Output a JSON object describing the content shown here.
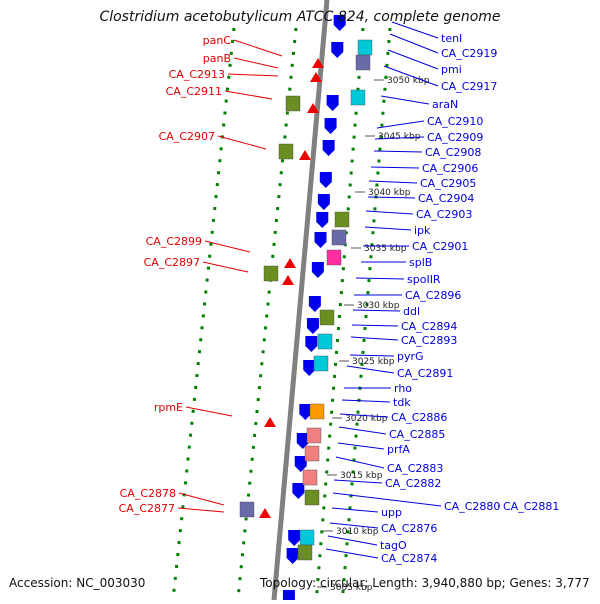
{
  "title": "Clostridium acetobutylicum ATCC 824, complete genome",
  "footer": {
    "accession": "Accession: NC_003030",
    "summary": "Topology: circular; Length: 3,940,880 bp; Genes: 3,777"
  },
  "colors": {
    "reverse_label": "#e00000",
    "forward_label": "#0000dd",
    "backbone": "#808080",
    "dots": "#008000",
    "gene_blue": "#0000ee",
    "gene_red": "#ee0000",
    "cog_olive": "#6b8e23",
    "cog_cyan": "#00c8d8",
    "cog_slate": "#6a6aa8",
    "cog_magenta": "#ff2ea0",
    "cog_orange": "#ff9900",
    "cog_pink": "#f08080"
  },
  "ticks": [
    "3050 kbp",
    "3045 kbp",
    "3040 kbp",
    "3035 kbp",
    "3030 kbp",
    "3025 kbp",
    "3020 kbp",
    "3015 kbp",
    "3010 kbp",
    "3005 kbp"
  ],
  "left_labels": [
    "panC",
    "panB",
    "CA_C2913",
    "CA_C2911",
    "CA_C2907",
    "CA_C2899",
    "CA_C2897",
    "rpmE",
    "CA_C2878",
    "CA_C2877"
  ],
  "right_labels": [
    "tenI",
    "CA_C2919",
    "pmi",
    "CA_C2917",
    "araN",
    "CA_C2910",
    "CA_C2909",
    "CA_C2908",
    "CA_C2906",
    "CA_C2905",
    "CA_C2904",
    "CA_C2903",
    "ipk",
    "CA_C2901",
    "splB",
    "spoIIR",
    "CA_C2896",
    "ddl",
    "CA_C2894",
    "CA_C2893",
    "pyrG",
    "CA_C2891",
    "rho",
    "tdk",
    "CA_C2886",
    "CA_C2885",
    "prfA",
    "CA_C2883",
    "CA_C2882",
    "CA_C2880",
    "CA_C2881",
    "upp",
    "CA_C2876",
    "tagO",
    "CA_C2874"
  ]
}
